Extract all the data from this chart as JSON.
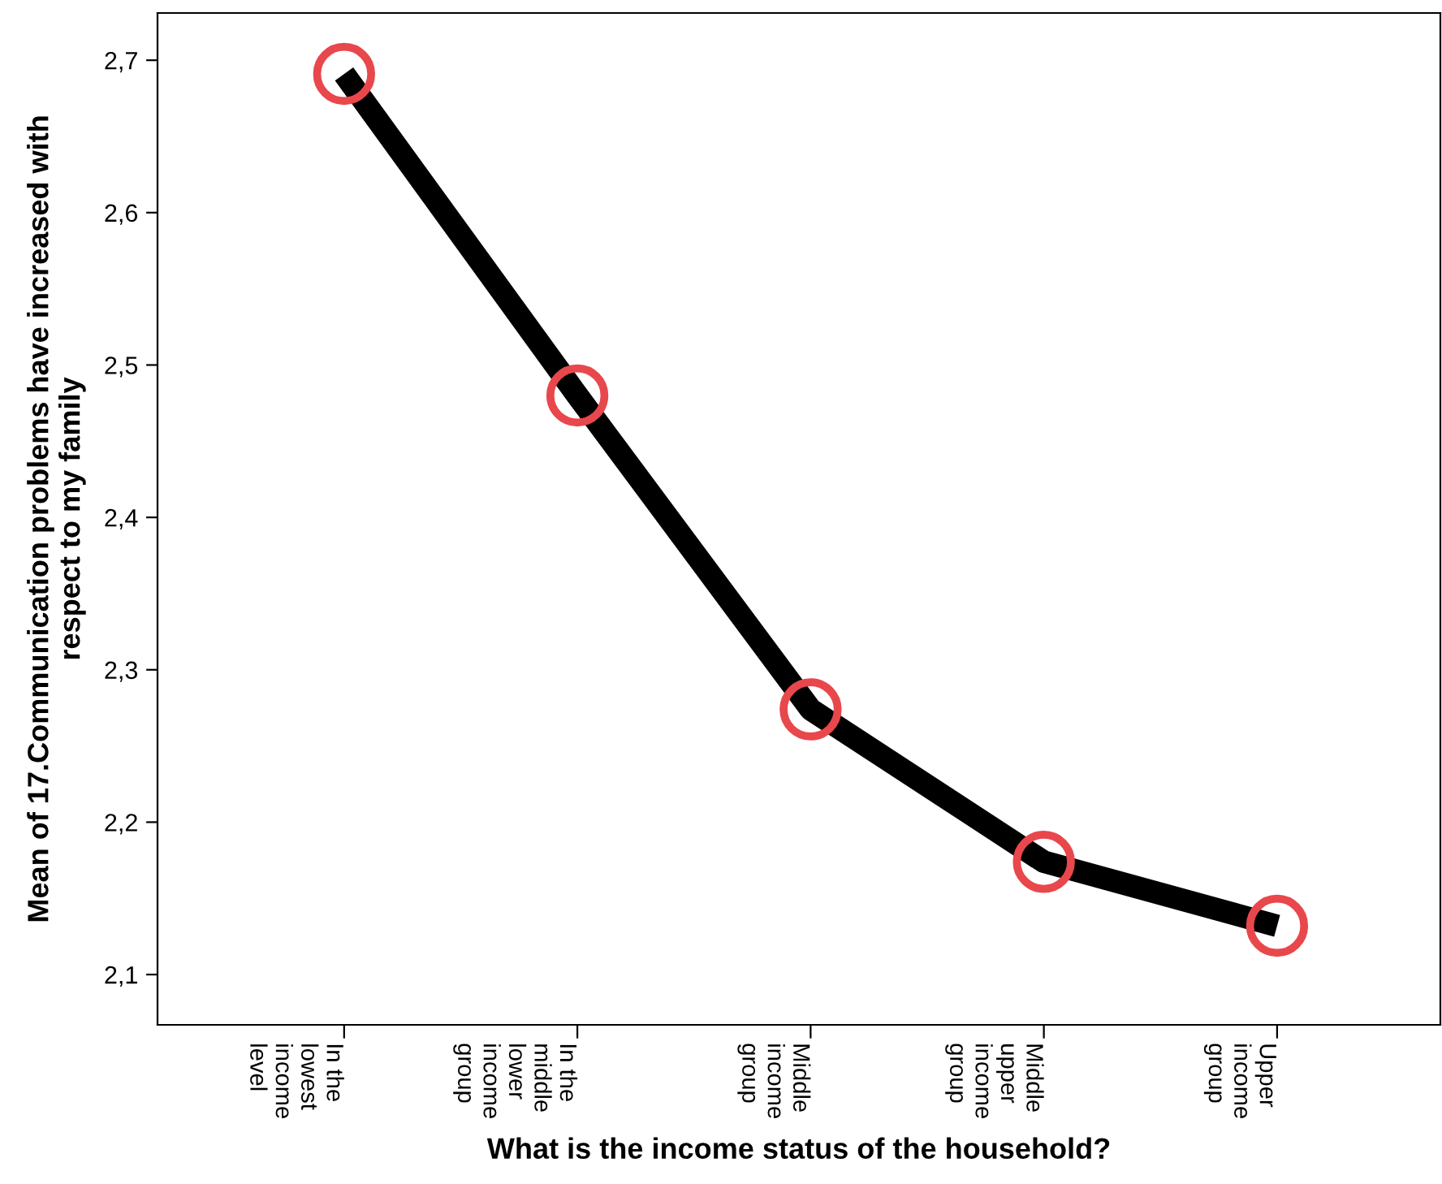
{
  "chart_data": {
    "type": "line",
    "xlabel": "What is the income status of the household?",
    "ylabel": "Mean of 17.Communication problems have increased with\nrespect to my family",
    "categories": [
      "In the\nlowest\nincome\nlevel",
      "In the\nmiddle\nlower\nincome\ngroup",
      "Middle\nincome\ngroup",
      "Middle\nupper\nincome\ngroup",
      "Upper\nincome\ngroup"
    ],
    "series": [
      {
        "color": "#000000",
        "values": [
          2.691,
          2.48,
          2.274,
          2.174,
          2.132
        ]
      }
    ],
    "ylim": [
      2.067,
      2.731
    ],
    "yticks": [
      {
        "value": 2.1,
        "label": "2,1"
      },
      {
        "value": 2.2,
        "label": "2,2"
      },
      {
        "value": 2.3,
        "label": "2,3"
      },
      {
        "value": 2.4,
        "label": "2,4"
      },
      {
        "value": 2.5,
        "label": "2,5"
      },
      {
        "value": 2.6,
        "label": "2,6"
      },
      {
        "value": 2.7,
        "label": "2,7"
      }
    ],
    "marker": "circle",
    "line_style": "solid"
  }
}
